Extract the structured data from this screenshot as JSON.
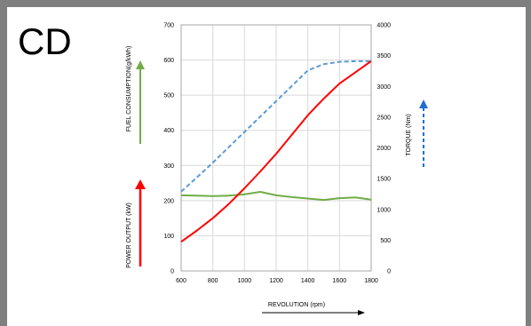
{
  "label": "CD",
  "chart_data": {
    "type": "line",
    "x": [
      600,
      700,
      800,
      900,
      1000,
      1100,
      1200,
      1300,
      1400,
      1500,
      1600,
      1700,
      1800
    ],
    "xlabel": "REVOLUTION (rpm)",
    "xlim": [
      600,
      1800
    ],
    "x_ticks": [
      "600",
      "800",
      "1000",
      "1200",
      "1400",
      "1600",
      "1800"
    ],
    "ylabel_left_top": "FUEL CONSUMPTION(g/kWh)",
    "ylabel_left_bottom": "POWER OUTPUT (kW)",
    "ylim_left": [
      0,
      700
    ],
    "y_left_ticks": [
      "0",
      "100",
      "200",
      "300",
      "400",
      "500",
      "600",
      "700"
    ],
    "ylabel_right": "TORQUE (Nm)",
    "ylim_right": [
      0,
      4000
    ],
    "y_right_ticks": [
      "0",
      "500",
      "1000",
      "1500",
      "2000",
      "2500",
      "3000",
      "3500",
      "4000"
    ],
    "grid": true,
    "legend": "none",
    "series": [
      {
        "role": "power-output",
        "axis": "left",
        "color": "#ff0000",
        "style": "solid",
        "values": [
          83,
          115,
          150,
          190,
          235,
          283,
          333,
          388,
          443,
          490,
          533,
          565,
          597
        ]
      },
      {
        "role": "fuel-consumption",
        "axis": "left",
        "color": "#70ad47",
        "style": "solid",
        "values": [
          215,
          214,
          213,
          214,
          218,
          225,
          215,
          210,
          206,
          202,
          207,
          209,
          203
        ]
      },
      {
        "role": "torque",
        "axis": "right",
        "color": "#5b9bd5",
        "style": "dashed",
        "values": [
          1290,
          1520,
          1760,
          2010,
          2260,
          2510,
          2760,
          3010,
          3260,
          3360,
          3400,
          3410,
          3410
        ]
      }
    ],
    "arrow_colors": {
      "fuel": "#70ad47",
      "power": "#ff0000",
      "torque": "#1f6fd1",
      "revolution": "#000000"
    }
  }
}
